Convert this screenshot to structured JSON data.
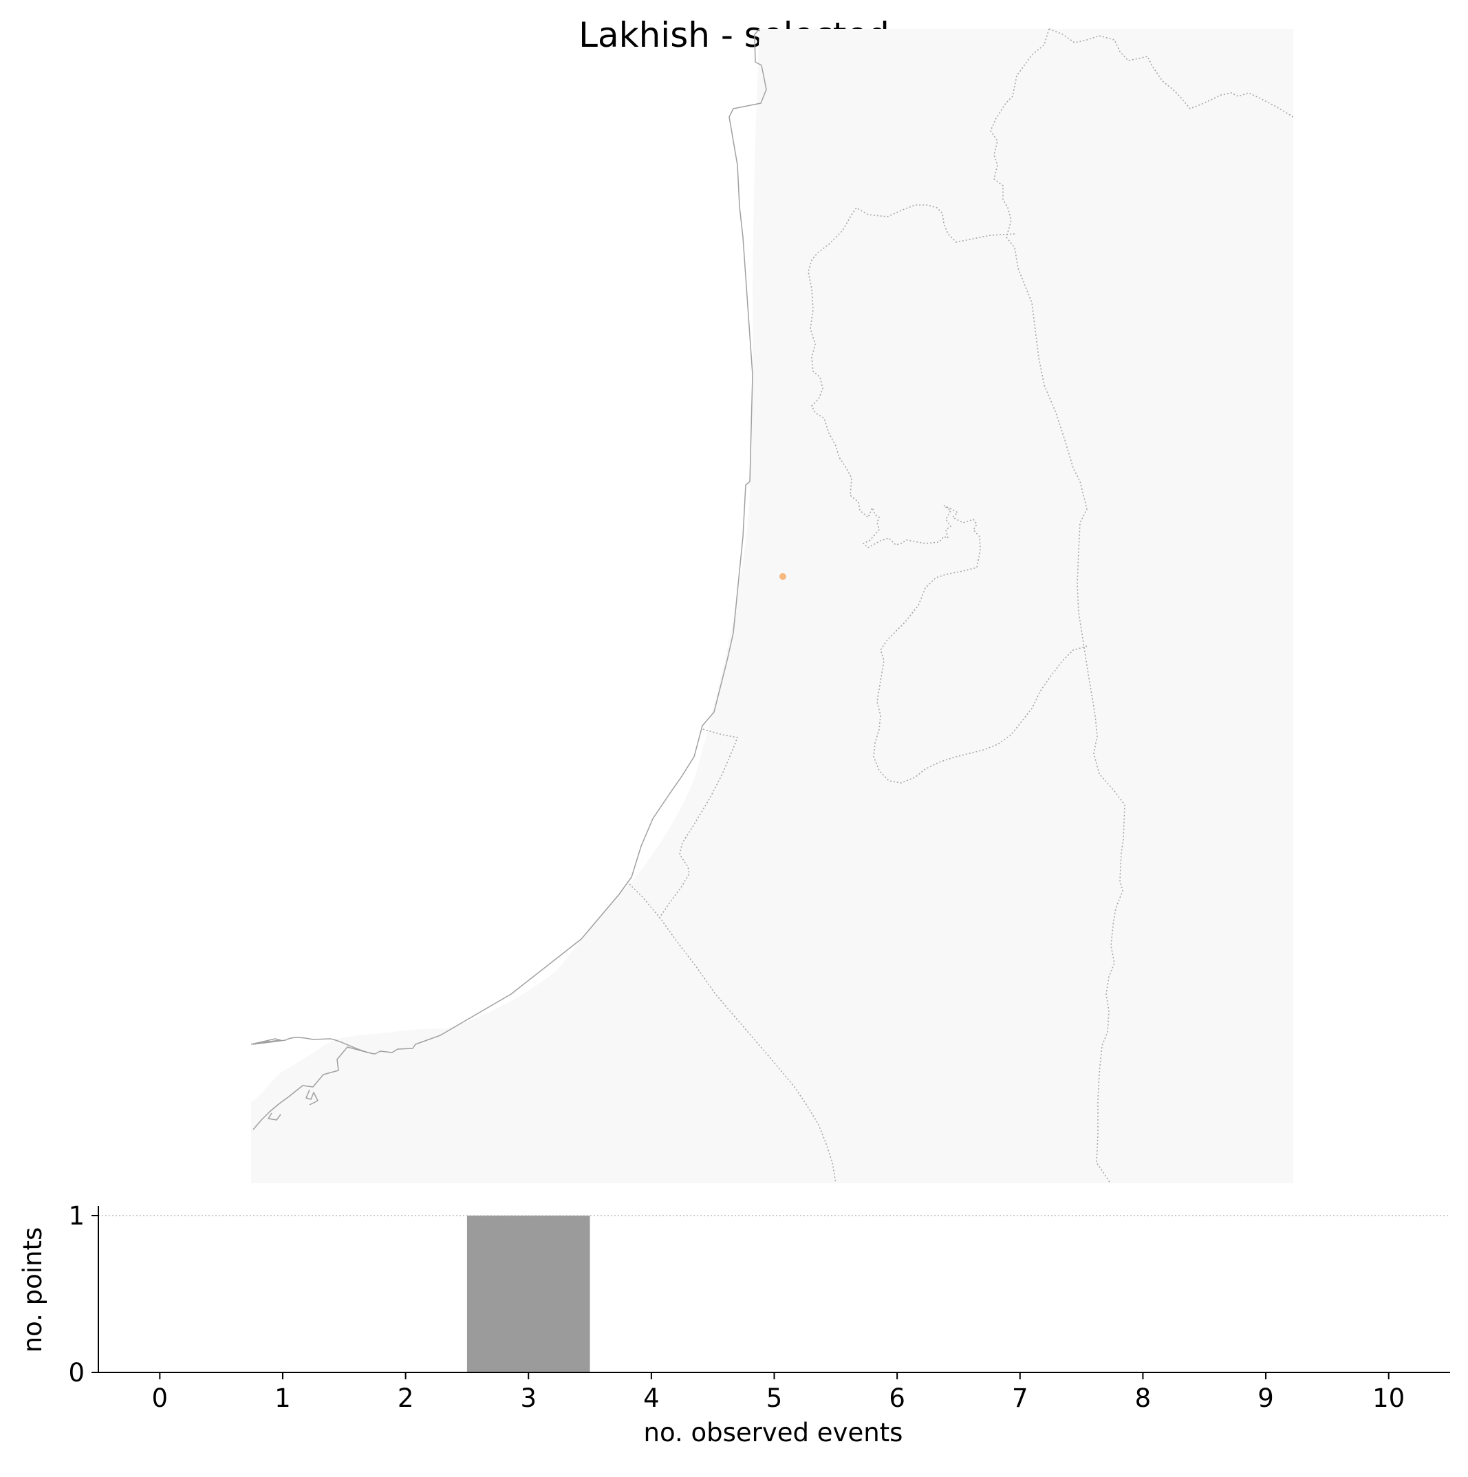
{
  "title": "Lakhish - selected",
  "colors": {
    "land": "#f8f8f8",
    "coastline": "#a0a0a0",
    "border": "#a6a6a6",
    "point": "#f5b97f",
    "bar": "#9b9b9b",
    "reference_line": "#bbbbbb"
  },
  "map": {
    "selected_point_count": 1
  },
  "chart_data": {
    "type": "bar",
    "xlabel": "no. observed events",
    "ylabel": "no. points",
    "x_ticks": [
      "0",
      "1",
      "2",
      "3",
      "4",
      "5",
      "6",
      "7",
      "8",
      "9",
      "10"
    ],
    "y_ticks": [
      "0",
      "1"
    ],
    "xlim": [
      -0.5,
      10.5
    ],
    "ylim": [
      0,
      1
    ],
    "bars": [
      {
        "x": 3,
        "value": 1
      }
    ],
    "reference_line": {
      "y": 1,
      "style": "dotted"
    },
    "grid": false
  }
}
